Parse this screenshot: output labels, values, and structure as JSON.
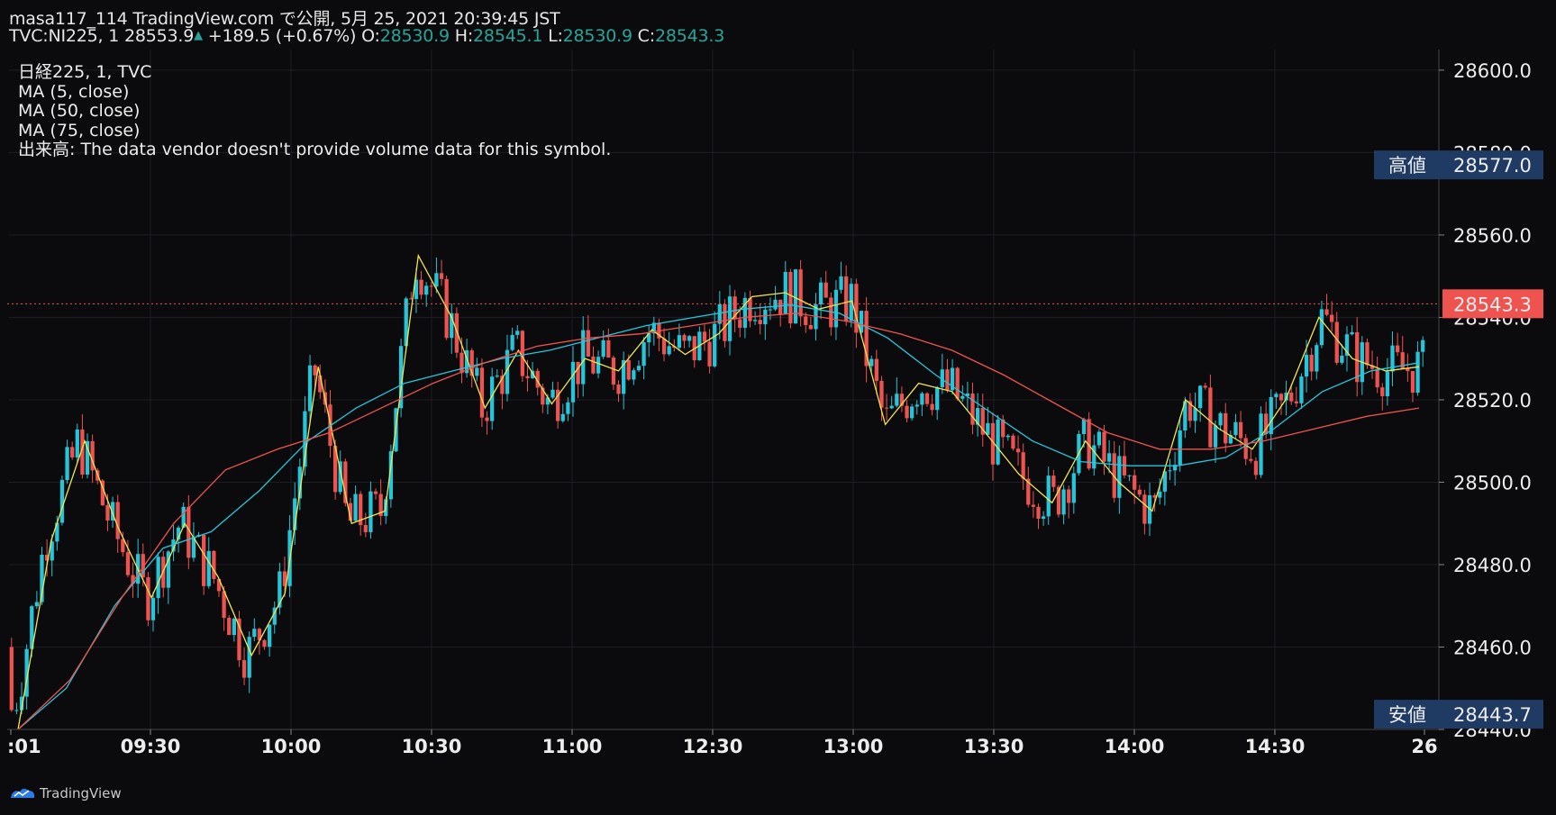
{
  "header": {
    "line1": "masa117_114 TradingView.com で公開, 5月 25, 2021 20:39:45 JST",
    "symbol": "TVC:NI225, 1",
    "last": "28553.9",
    "change": "+189.5 (+0.67%)",
    "o_label": "O:",
    "o_value": "28530.9",
    "h_label": "H:",
    "h_value": "28545.1",
    "l_label": "L:",
    "l_value": "28530.9",
    "c_label": "C:",
    "c_value": "28543.3"
  },
  "legend": [
    "日経225, 1, TVC",
    "MA (5, close)",
    "MA (50, close)",
    "MA (75, close)",
    "出来高: The data vendor doesn't provide volume data for this symbol."
  ],
  "brand": "TradingView",
  "colors": {
    "background": "#0b0b0d",
    "up": "#26c6da",
    "down": "#ef5350",
    "ma5": "#f2e64b",
    "ma50": "#26c6da",
    "ma75": "#ef5350",
    "label_bg": "#1f3a63",
    "last_price_bg": "#ef5350"
  },
  "chart_data": {
    "type": "candlestick",
    "ylim": [
      28440,
      28605
    ],
    "y_ticks": [
      "28600.0",
      "28580.0",
      "28560.0",
      "28540.0",
      "28520.0",
      "28500.0",
      "28480.0",
      "28460.0",
      "28440.0"
    ],
    "x_ticks": [
      ":01",
      "09:30",
      "10:00",
      "10:30",
      "11:00",
      "12:30",
      "13:00",
      "13:30",
      "14:00",
      "14:30",
      "26"
    ],
    "high_label": "高値",
    "high_value": "28577.0",
    "low_label": "安値",
    "low_value": "28443.7",
    "last_price": "28543.3",
    "series": [
      {
        "name": "MA (5, close)",
        "values": [
          28440,
          28486,
          28510,
          28489,
          28472,
          28490,
          28477,
          28458,
          28473,
          28528,
          28490,
          28493,
          28555,
          28540,
          28518,
          28532,
          28519,
          28530,
          28527,
          28537,
          28531,
          28536,
          28545,
          28546,
          28542,
          28544,
          28514,
          28524,
          28522,
          28512,
          28502,
          28495,
          28510,
          28500,
          28493,
          28520,
          28513,
          28508,
          28520,
          28540,
          28530,
          28527,
          28528
        ]
      },
      {
        "name": "MA (50, close)",
        "values": [
          28440,
          28450,
          28470,
          28484,
          28488,
          28498,
          28510,
          28518,
          28524,
          28527,
          28530,
          28532,
          28535,
          28538,
          28540,
          28542,
          28543,
          28541,
          28535,
          28526,
          28518,
          28510,
          28505,
          28504,
          28504,
          28506,
          28513,
          28522,
          28527,
          28529
        ]
      },
      {
        "name": "MA (75, close)",
        "values": [
          28440,
          28452,
          28472,
          28490,
          28503,
          28508,
          28512,
          28518,
          28524,
          28529,
          28533,
          28535,
          28536,
          28538,
          28540,
          28541,
          28539,
          28536,
          28532,
          28526,
          28519,
          28512,
          28508,
          28508,
          28510,
          28513,
          28516,
          28518
        ]
      }
    ]
  }
}
